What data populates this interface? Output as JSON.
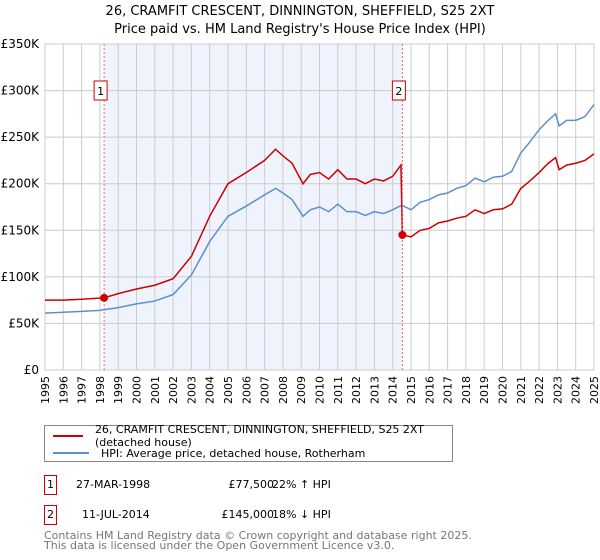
{
  "chart_data": {
    "type": "line",
    "title": "26, CRAMFIT CRESCENT, DINNINGTON, SHEFFIELD, S25 2XT",
    "subtitle": "Price paid vs. HM Land Registry's House Price Index (HPI)",
    "xlim": [
      1995,
      2025
    ],
    "ylim": [
      0,
      350000
    ],
    "x_ticks": [
      "1995",
      "1996",
      "1997",
      "1998",
      "1999",
      "2000",
      "2001",
      "2002",
      "2003",
      "2004",
      "2005",
      "2006",
      "2007",
      "2008",
      "2009",
      "2010",
      "2011",
      "2012",
      "2013",
      "2014",
      "2015",
      "2016",
      "2017",
      "2018",
      "2019",
      "2020",
      "2021",
      "2022",
      "2023",
      "2024",
      "2025"
    ],
    "y_ticks": [
      {
        "v": 0,
        "label": "£0"
      },
      {
        "v": 50000,
        "label": "£50K"
      },
      {
        "v": 100000,
        "label": "£100K"
      },
      {
        "v": 150000,
        "label": "£150K"
      },
      {
        "v": 200000,
        "label": "£200K"
      },
      {
        "v": 250000,
        "label": "£250K"
      },
      {
        "v": 300000,
        "label": "£300K"
      },
      {
        "v": 350000,
        "label": "£350K"
      }
    ],
    "grid": true,
    "shaded_range": [
      1998.23,
      2014.53
    ],
    "series": [
      {
        "name": "26, CRAMFIT CRESCENT, DINNINGTON, SHEFFIELD, S25 2XT (detached house)",
        "color": "#cc0000",
        "points": [
          [
            1995,
            75
          ],
          [
            1996,
            75
          ],
          [
            1997,
            76
          ],
          [
            1998.23,
            77.5
          ],
          [
            1999,
            82
          ],
          [
            2000,
            87
          ],
          [
            2001,
            91
          ],
          [
            2002,
            98
          ],
          [
            2003,
            122
          ],
          [
            2004,
            165
          ],
          [
            2005,
            200
          ],
          [
            2006,
            212
          ],
          [
            2007,
            225
          ],
          [
            2007.6,
            237
          ],
          [
            2008,
            230
          ],
          [
            2008.5,
            222
          ],
          [
            2009.1,
            200
          ],
          [
            2009.5,
            210
          ],
          [
            2010,
            212
          ],
          [
            2010.5,
            205
          ],
          [
            2011,
            215
          ],
          [
            2011.5,
            205
          ],
          [
            2012,
            205
          ],
          [
            2012.5,
            200
          ],
          [
            2013,
            205
          ],
          [
            2013.5,
            203
          ],
          [
            2014,
            208
          ],
          [
            2014.45,
            220
          ],
          [
            2014.53,
            145
          ],
          [
            2015,
            143
          ],
          [
            2015.5,
            150
          ],
          [
            2016,
            152
          ],
          [
            2016.5,
            158
          ],
          [
            2017,
            160
          ],
          [
            2017.5,
            163
          ],
          [
            2018,
            165
          ],
          [
            2018.5,
            172
          ],
          [
            2019,
            168
          ],
          [
            2019.5,
            172
          ],
          [
            2020,
            173
          ],
          [
            2020.5,
            178
          ],
          [
            2021,
            195
          ],
          [
            2021.5,
            203
          ],
          [
            2022,
            212
          ],
          [
            2022.5,
            222
          ],
          [
            2022.9,
            228
          ],
          [
            2023.1,
            215
          ],
          [
            2023.5,
            220
          ],
          [
            2024,
            222
          ],
          [
            2024.5,
            225
          ],
          [
            2025,
            232
          ]
        ]
      },
      {
        "name": "HPI: Average price, detached house, Rotherham",
        "color": "#5b8fd0",
        "points": [
          [
            1995,
            61
          ],
          [
            1996,
            62
          ],
          [
            1997,
            63
          ],
          [
            1998,
            64
          ],
          [
            1999,
            67
          ],
          [
            2000,
            71
          ],
          [
            2001,
            74
          ],
          [
            2002,
            81
          ],
          [
            2003,
            102
          ],
          [
            2004,
            138
          ],
          [
            2005,
            165
          ],
          [
            2006,
            176
          ],
          [
            2007,
            188
          ],
          [
            2007.6,
            195
          ],
          [
            2008,
            190
          ],
          [
            2008.5,
            183
          ],
          [
            2009.1,
            165
          ],
          [
            2009.5,
            172
          ],
          [
            2010,
            175
          ],
          [
            2010.5,
            170
          ],
          [
            2011,
            178
          ],
          [
            2011.5,
            170
          ],
          [
            2012,
            170
          ],
          [
            2012.5,
            166
          ],
          [
            2013,
            170
          ],
          [
            2013.5,
            168
          ],
          [
            2014,
            172
          ],
          [
            2014.5,
            177
          ],
          [
            2015,
            172
          ],
          [
            2015.5,
            180
          ],
          [
            2016,
            183
          ],
          [
            2016.5,
            188
          ],
          [
            2017,
            190
          ],
          [
            2017.5,
            195
          ],
          [
            2018,
            198
          ],
          [
            2018.5,
            206
          ],
          [
            2019,
            202
          ],
          [
            2019.5,
            207
          ],
          [
            2020,
            208
          ],
          [
            2020.5,
            213
          ],
          [
            2021,
            233
          ],
          [
            2021.5,
            245
          ],
          [
            2022,
            258
          ],
          [
            2022.5,
            268
          ],
          [
            2022.9,
            275
          ],
          [
            2023.1,
            262
          ],
          [
            2023.5,
            268
          ],
          [
            2024,
            268
          ],
          [
            2024.5,
            272
          ],
          [
            2025,
            285
          ]
        ]
      }
    ],
    "units": "thousands GBP",
    "markers": [
      {
        "label": "1",
        "x": 1998.23,
        "y": 77.5
      },
      {
        "label": "2",
        "x": 2014.53,
        "y": 145
      }
    ]
  },
  "legend": {
    "property": "26, CRAMFIT CRESCENT, DINNINGTON, SHEFFIELD, S25 2XT (detached house)",
    "hpi": "HPI: Average price, detached house, Rotherham"
  },
  "transactions": [
    {
      "num": "1",
      "date": "27-MAR-1998",
      "price": "£77,500",
      "delta": "22% ↑ HPI"
    },
    {
      "num": "2",
      "date": "11-JUL-2014",
      "price": "£145,000",
      "delta": "18% ↓ HPI"
    }
  ],
  "footer": {
    "line1": "Contains HM Land Registry data © Crown copyright and database right 2025.",
    "line2": "This data is licensed under the Open Government Licence v3.0."
  }
}
